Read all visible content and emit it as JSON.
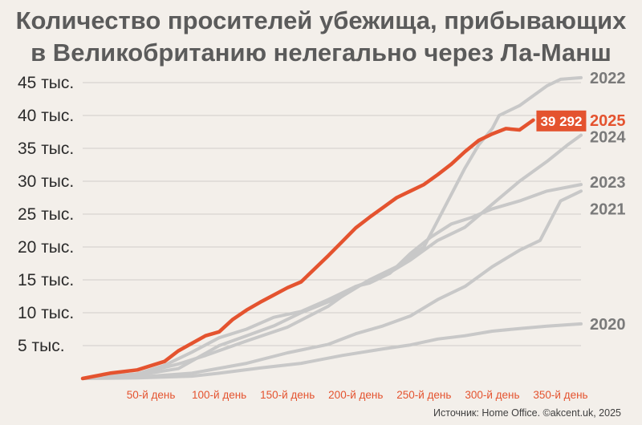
{
  "header": {
    "title_line1": "Количество просителей убежища, прибывающих",
    "title_line2": "в Великобританию нелегально через Ла-Манш"
  },
  "source": "Источник: Home Office. ©akcent.uk, 2025",
  "colors": {
    "highlight": "#e4532f",
    "other": "#c8c8c8",
    "grid": "#d0cdc9",
    "background": "#f3efea"
  },
  "chart_data": {
    "type": "line",
    "title": "Количество просителей убежища, прибывающих в Великобританию нелегально через Ла-Манш",
    "xlabel": "",
    "ylabel": "",
    "xlim": [
      0,
      365
    ],
    "ylim": [
      0,
      45000
    ],
    "grid": true,
    "legend": "direct labels at line ends (right)",
    "y_ticks": [
      {
        "value": 5000,
        "label": "5 тыс."
      },
      {
        "value": 10000,
        "label": "10 тыс."
      },
      {
        "value": 15000,
        "label": "15 тыс."
      },
      {
        "value": 20000,
        "label": "20 тыс."
      },
      {
        "value": 25000,
        "label": "25 тыс."
      },
      {
        "value": 30000,
        "label": "30 тыс."
      },
      {
        "value": 35000,
        "label": "35 тыс."
      },
      {
        "value": 40000,
        "label": "40 тыс."
      },
      {
        "value": 45000,
        "label": "45 тыс."
      }
    ],
    "x_ticks": [
      {
        "value": 50,
        "label": "50-й день"
      },
      {
        "value": 100,
        "label": "100-й день"
      },
      {
        "value": 150,
        "label": "150-й день"
      },
      {
        "value": 200,
        "label": "200-й день"
      },
      {
        "value": 250,
        "label": "250-й день"
      },
      {
        "value": 300,
        "label": "300-й день"
      },
      {
        "value": 350,
        "label": "350-й день"
      }
    ],
    "callout": {
      "series": "2025",
      "text": "39 292"
    },
    "series": [
      {
        "name": "2020",
        "highlight": false,
        "points": [
          [
            0,
            0
          ],
          [
            40,
            100
          ],
          [
            80,
            350
          ],
          [
            100,
            800
          ],
          [
            130,
            1600
          ],
          [
            160,
            2300
          ],
          [
            190,
            3500
          ],
          [
            220,
            4500
          ],
          [
            240,
            5100
          ],
          [
            260,
            6000
          ],
          [
            280,
            6500
          ],
          [
            300,
            7200
          ],
          [
            320,
            7600
          ],
          [
            340,
            7950
          ],
          [
            365,
            8300
          ]
        ]
      },
      {
        "name": "2021",
        "highlight": false,
        "points": [
          [
            0,
            0
          ],
          [
            40,
            200
          ],
          [
            80,
            800
          ],
          [
            120,
            2300
          ],
          [
            150,
            3900
          ],
          [
            180,
            5200
          ],
          [
            200,
            6800
          ],
          [
            220,
            8000
          ],
          [
            240,
            9500
          ],
          [
            260,
            12000
          ],
          [
            280,
            14000
          ],
          [
            300,
            17000
          ],
          [
            320,
            19500
          ],
          [
            335,
            21000
          ],
          [
            340,
            23000
          ],
          [
            345,
            25000
          ],
          [
            350,
            27000
          ],
          [
            360,
            28000
          ],
          [
            365,
            28500
          ]
        ]
      },
      {
        "name": "2022",
        "highlight": false,
        "points": [
          [
            0,
            0
          ],
          [
            40,
            500
          ],
          [
            70,
            1500
          ],
          [
            100,
            5000
          ],
          [
            120,
            6500
          ],
          [
            140,
            8000
          ],
          [
            160,
            10000
          ],
          [
            190,
            12500
          ],
          [
            210,
            15000
          ],
          [
            230,
            17000
          ],
          [
            250,
            20000
          ],
          [
            260,
            24000
          ],
          [
            270,
            28000
          ],
          [
            280,
            32000
          ],
          [
            290,
            35500
          ],
          [
            300,
            38000
          ],
          [
            305,
            40000
          ],
          [
            320,
            41500
          ],
          [
            330,
            43000
          ],
          [
            340,
            44500
          ],
          [
            350,
            45500
          ],
          [
            365,
            45750
          ]
        ]
      },
      {
        "name": "2023",
        "highlight": false,
        "points": [
          [
            0,
            0
          ],
          [
            40,
            700
          ],
          [
            70,
            2200
          ],
          [
            90,
            3500
          ],
          [
            120,
            5700
          ],
          [
            150,
            7800
          ],
          [
            180,
            11000
          ],
          [
            200,
            14000
          ],
          [
            210,
            14500
          ],
          [
            225,
            16000
          ],
          [
            240,
            19000
          ],
          [
            255,
            21500
          ],
          [
            270,
            23500
          ],
          [
            285,
            24500
          ],
          [
            300,
            25800
          ],
          [
            320,
            27000
          ],
          [
            340,
            28500
          ],
          [
            365,
            29500
          ]
        ]
      },
      {
        "name": "2024",
        "highlight": false,
        "points": [
          [
            0,
            0
          ],
          [
            40,
            700
          ],
          [
            60,
            2000
          ],
          [
            80,
            4000
          ],
          [
            100,
            6200
          ],
          [
            120,
            7500
          ],
          [
            140,
            9300
          ],
          [
            160,
            10200
          ],
          [
            180,
            12000
          ],
          [
            200,
            14000
          ],
          [
            220,
            15500
          ],
          [
            240,
            18000
          ],
          [
            260,
            21000
          ],
          [
            280,
            23000
          ],
          [
            300,
            26500
          ],
          [
            320,
            30000
          ],
          [
            340,
            33000
          ],
          [
            355,
            35500
          ],
          [
            365,
            37000
          ]
        ]
      },
      {
        "name": "2025",
        "highlight": true,
        "points": [
          [
            0,
            0
          ],
          [
            20,
            800
          ],
          [
            40,
            1300
          ],
          [
            60,
            2600
          ],
          [
            70,
            4200
          ],
          [
            90,
            6500
          ],
          [
            100,
            7100
          ],
          [
            110,
            9000
          ],
          [
            120,
            10400
          ],
          [
            130,
            11600
          ],
          [
            140,
            12700
          ],
          [
            150,
            13800
          ],
          [
            160,
            14700
          ],
          [
            170,
            16700
          ],
          [
            180,
            18700
          ],
          [
            190,
            20800
          ],
          [
            200,
            22900
          ],
          [
            210,
            24500
          ],
          [
            220,
            26000
          ],
          [
            230,
            27500
          ],
          [
            240,
            28500
          ],
          [
            250,
            29500
          ],
          [
            260,
            31000
          ],
          [
            270,
            32600
          ],
          [
            280,
            34500
          ],
          [
            290,
            36200
          ],
          [
            300,
            37200
          ],
          [
            310,
            38000
          ],
          [
            320,
            37800
          ],
          [
            330,
            39292
          ]
        ]
      }
    ]
  }
}
